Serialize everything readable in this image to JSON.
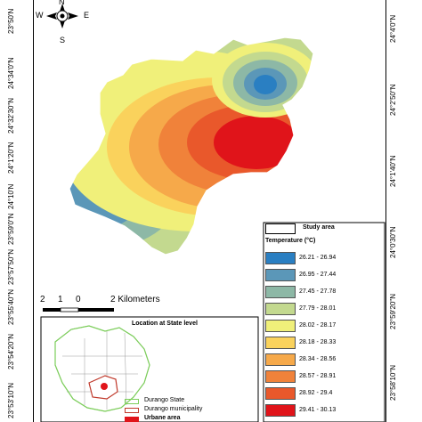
{
  "compass": {
    "north": "N",
    "south": "S",
    "east": "E",
    "west": "W"
  },
  "left_coords": [
    "23°50'N",
    "24°50'N",
    "24°34'0\"N",
    "24°32'30\"N",
    "24°1'20\"N",
    "24°10'N",
    "23°59'0\"N",
    "23°57'50\"N",
    "23°55'40\"N",
    "23°54'20\"N",
    "23°53'10\"N"
  ],
  "right_coords": [
    "24°4'0\"N",
    "24°2'50\"N",
    "24°1'40\"N",
    "24°0'30\"N",
    "23°59'20\"N",
    "23°58'10\"N"
  ],
  "scale_bar": {
    "labels": [
      "2",
      "1",
      "0",
      "2 Kilometers"
    ]
  },
  "legend": {
    "study_area_label": "Study area",
    "title": "Temperature (°C)",
    "items": [
      {
        "label": "26.21 - 26.94",
        "color": "#2a7fc2"
      },
      {
        "label": "26.95 - 27.44",
        "color": "#5b97b8"
      },
      {
        "label": "27.45 - 27.78",
        "color": "#8db8a6"
      },
      {
        "label": "27.79 - 28.01",
        "color": "#c3d98f"
      },
      {
        "label": "28.02 - 28.17",
        "color": "#f0f07a"
      },
      {
        "label": "28.18 - 28.33",
        "color": "#fad25c"
      },
      {
        "label": "28.34 - 28.56",
        "color": "#f6a94a"
      },
      {
        "label": "28.57 - 28.91",
        "color": "#f0823a"
      },
      {
        "label": "28.92 - 29.4",
        "color": "#e9582b"
      },
      {
        "label": "29.41 - 30.13",
        "color": "#e0141a"
      }
    ]
  },
  "inset": {
    "title": "Location at State level",
    "legend": [
      {
        "label": "Durango State",
        "color": "#7ccf5a"
      },
      {
        "label": "Durango municipality",
        "color": "#c0392b"
      },
      {
        "label": "Urbane area",
        "color": "#e0141a"
      }
    ]
  }
}
